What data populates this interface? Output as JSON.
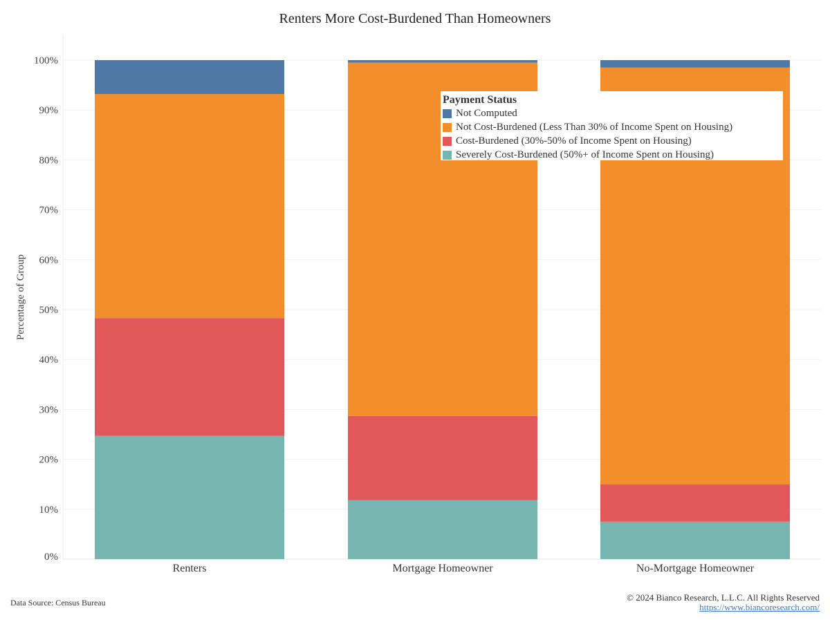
{
  "chart_data": {
    "type": "bar",
    "stacked": true,
    "title": "Renters More Cost-Burdened Than Homeowners",
    "ylabel": "Percentage of Group",
    "xlabel": "",
    "ylim": [
      0,
      100
    ],
    "y_ticks": [
      "0%",
      "10%",
      "20%",
      "30%",
      "40%",
      "50%",
      "60%",
      "70%",
      "80%",
      "90%",
      "100%"
    ],
    "categories": [
      "Renters",
      "Mortgage Homeowner",
      "No-Mortgage Homeowner"
    ],
    "series": [
      {
        "name": "Severely Cost-Burdened (50%+ of Income Spent on Housing)",
        "color": "#76b5b0",
        "values": [
          24.7,
          11.8,
          7.5
        ]
      },
      {
        "name": "Cost-Burdened (30%-50% of Income Spent on Housing)",
        "color": "#e1575a",
        "values": [
          23.6,
          16.9,
          7.5
        ]
      },
      {
        "name": "Not Cost-Burdened (Less Than 30% of Income Spent on Housing)",
        "color": "#f28e2b",
        "values": [
          44.9,
          70.8,
          83.5
        ]
      },
      {
        "name": "Not Computed",
        "color": "#4e79a7",
        "values": [
          6.8,
          0.5,
          1.5
        ]
      }
    ],
    "legend": {
      "title": "Payment Status",
      "placement": "top-right",
      "order": [
        "Not Computed",
        "Not Cost-Burdened (Less Than 30% of Income Spent on Housing)",
        "Cost-Burdened (30%-50% of Income Spent on Housing)",
        "Severely Cost-Burdened (50%+ of Income Spent on Housing)"
      ]
    },
    "grid": true
  },
  "footer": {
    "source": "Data Source: Census Bureau",
    "copyright": "© 2024 Bianco Research, L.L.C. All Rights Reserved",
    "link": "https://www.biancoresearch.com/"
  }
}
